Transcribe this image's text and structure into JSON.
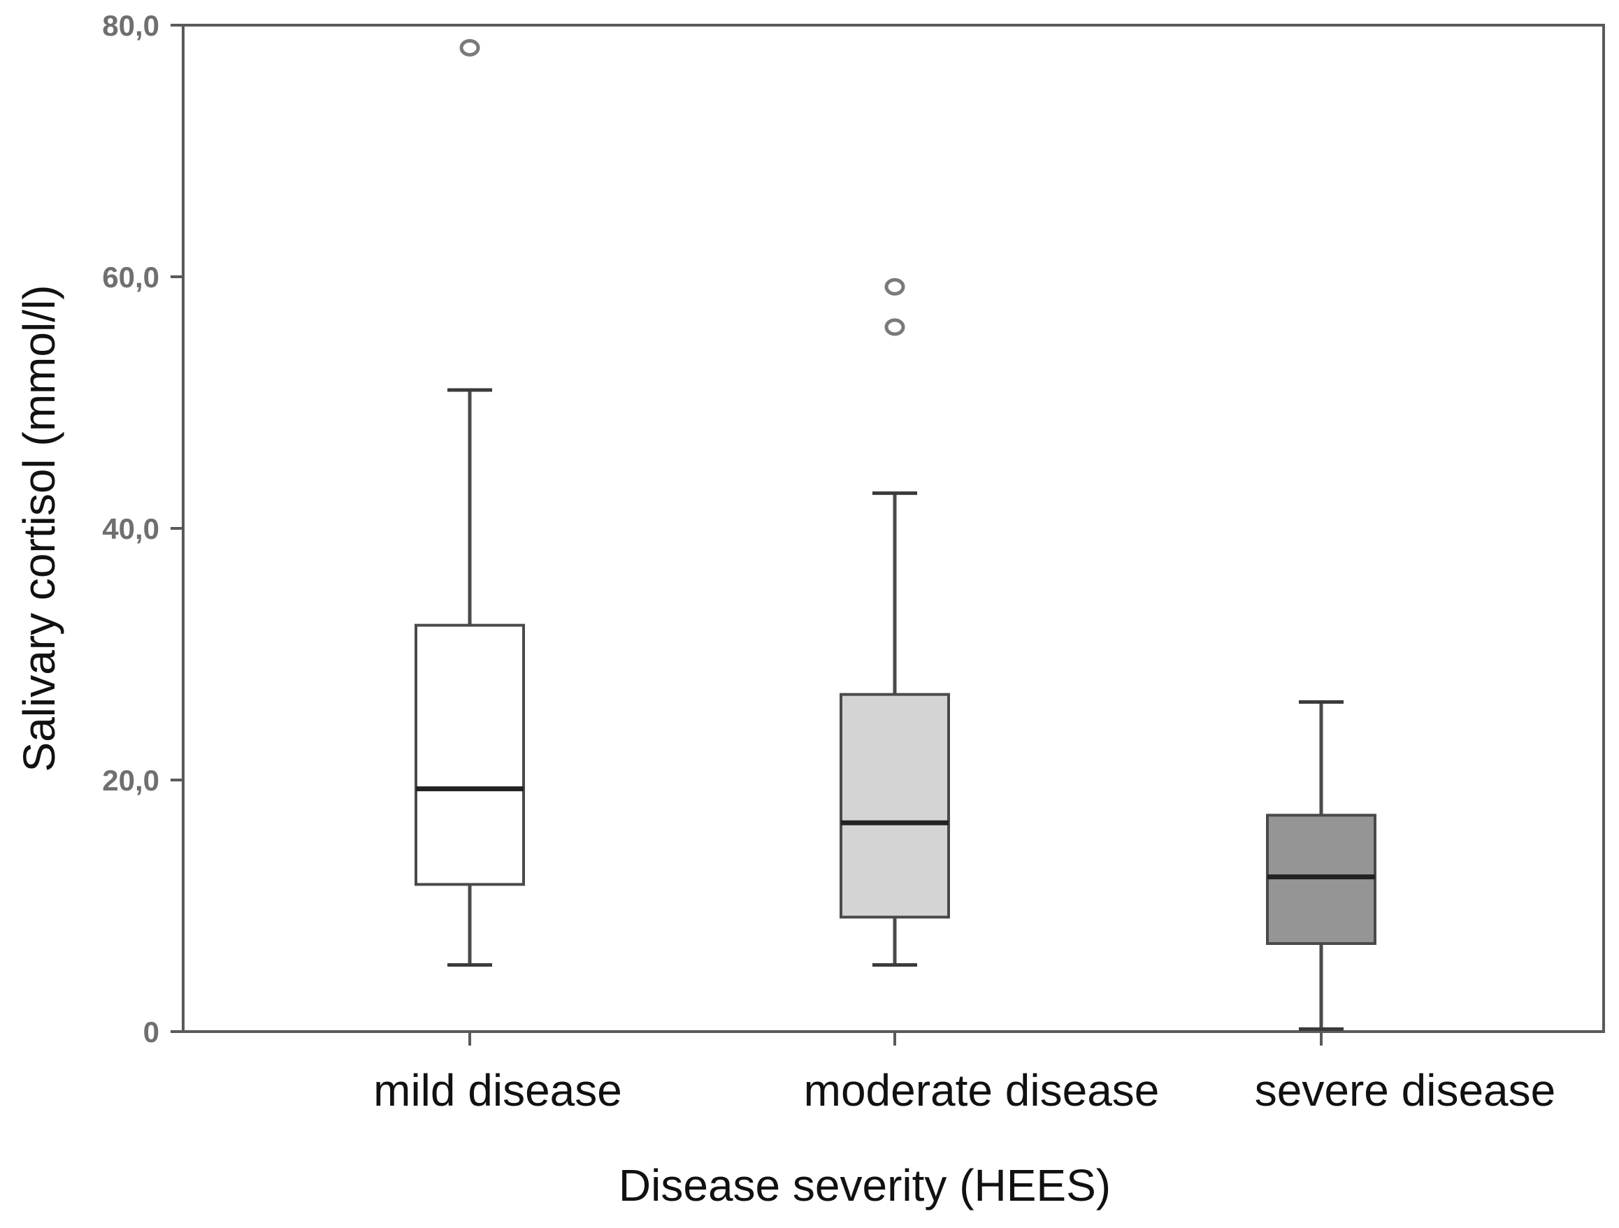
{
  "chart_data": {
    "type": "boxplot",
    "title": "",
    "xlabel": "Disease severity (HEES)",
    "ylabel": "Salivary cortisol (mmol/l)",
    "ylim": [
      0,
      80
    ],
    "yticks": [
      {
        "value": 0,
        "label": "0"
      },
      {
        "value": 20,
        "label": "20,0"
      },
      {
        "value": 40,
        "label": "40,0"
      },
      {
        "value": 60,
        "label": "60,0"
      },
      {
        "value": 80,
        "label": "80,0"
      }
    ],
    "grid": false,
    "categories": [
      "mild disease",
      "moderate disease",
      "severe disease"
    ],
    "boxes": [
      {
        "name": "mild disease",
        "whisker_low": 5.3,
        "q1": 11.7,
        "median": 19.3,
        "q3": 32.3,
        "whisker_high": 51.0,
        "outliers": [
          78.2
        ],
        "fill": "#ffffff"
      },
      {
        "name": "moderate disease",
        "whisker_low": 5.3,
        "q1": 9.1,
        "median": 16.6,
        "q3": 26.8,
        "whisker_high": 42.8,
        "outliers": [
          59.2,
          56.0
        ],
        "fill": "#d4d4d4"
      },
      {
        "name": "severe disease",
        "whisker_low": 0.2,
        "q1": 7.0,
        "median": 12.3,
        "q3": 17.2,
        "whisker_high": 26.2,
        "outliers": [],
        "fill": "#959595"
      }
    ]
  }
}
